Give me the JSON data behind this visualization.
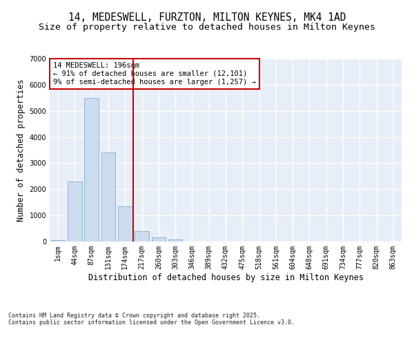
{
  "title_line1": "14, MEDESWELL, FURZTON, MILTON KEYNES, MK4 1AD",
  "title_line2": "Size of property relative to detached houses in Milton Keynes",
  "xlabel": "Distribution of detached houses by size in Milton Keynes",
  "ylabel": "Number of detached properties",
  "categories": [
    "1sqm",
    "44sqm",
    "87sqm",
    "131sqm",
    "174sqm",
    "217sqm",
    "260sqm",
    "303sqm",
    "346sqm",
    "389sqm",
    "432sqm",
    "475sqm",
    "518sqm",
    "561sqm",
    "604sqm",
    "648sqm",
    "691sqm",
    "734sqm",
    "777sqm",
    "820sqm",
    "863sqm"
  ],
  "values": [
    50,
    2300,
    5500,
    3400,
    1350,
    400,
    150,
    80,
    0,
    0,
    0,
    0,
    0,
    0,
    0,
    0,
    0,
    0,
    0,
    0,
    0
  ],
  "bar_color": "#ccdcee",
  "bar_edge_color": "#7bafd4",
  "background_color": "#e8eef8",
  "grid_color": "#ffffff",
  "vline_color": "#cc0000",
  "vline_x": 4.5,
  "annotation_text": "14 MEDESWELL: 196sqm\n← 91% of detached houses are smaller (12,101)\n9% of semi-detached houses are larger (1,257) →",
  "annotation_box_color": "#cc0000",
  "ylim": [
    0,
    7000
  ],
  "yticks": [
    0,
    1000,
    2000,
    3000,
    4000,
    5000,
    6000,
    7000
  ],
  "footer_text": "Contains HM Land Registry data © Crown copyright and database right 2025.\nContains public sector information licensed under the Open Government Licence v3.0.",
  "title_fontsize": 10.5,
  "subtitle_fontsize": 9.5,
  "axis_label_fontsize": 8.5,
  "tick_fontsize": 7,
  "annotation_fontsize": 7.5,
  "footer_fontsize": 6.0
}
